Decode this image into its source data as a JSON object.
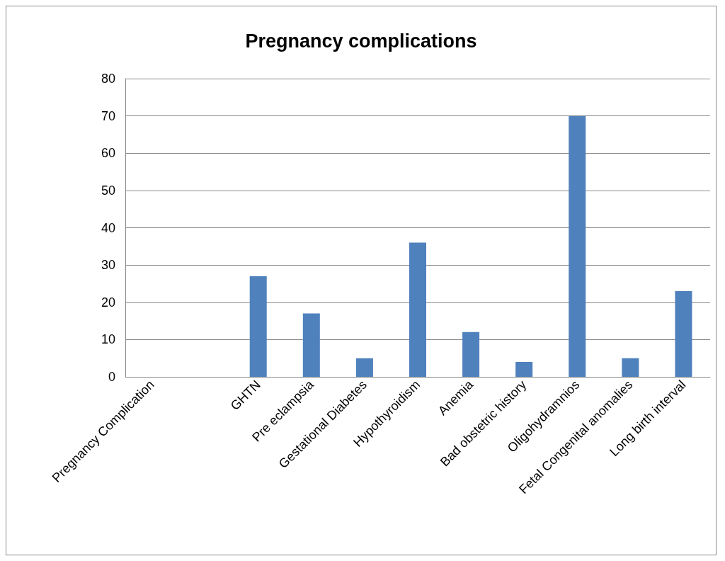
{
  "chart_data": {
    "type": "bar",
    "title": "Pregnancy complications",
    "categories": [
      "Pregnancy Complication",
      null,
      "GHTN",
      "Pre eclampsia",
      "Gestational Diabetes",
      "Hypothyroidism",
      "Anemia",
      "Bad obstetric history",
      "Oligohydramnios",
      "Fetal Congenital anomalies",
      "Long birth interval"
    ],
    "values": [
      null,
      null,
      27,
      17,
      5,
      36,
      12,
      4,
      70,
      5,
      23
    ],
    "color": "#4f81bd",
    "ylim": [
      0,
      80
    ],
    "yticks": [
      0,
      10,
      20,
      30,
      40,
      50,
      60,
      70,
      80
    ],
    "grid": "y"
  }
}
